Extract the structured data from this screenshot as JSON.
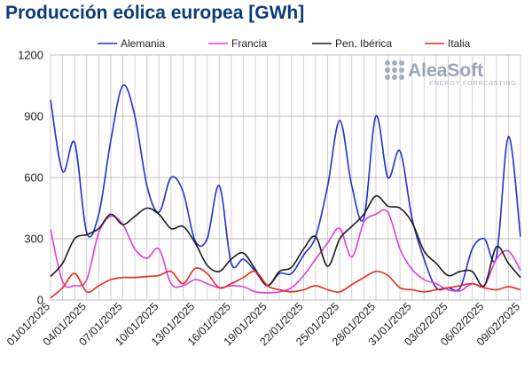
{
  "chart_data": {
    "type": "line",
    "title": "Producción eólica europea [GWh]",
    "xlabel": "",
    "ylabel": "",
    "ylim": [
      0,
      1200
    ],
    "yticks": [
      0,
      300,
      600,
      900,
      1200
    ],
    "x_tick_labels": [
      "01/01/2025",
      "04/01/2025",
      "07/01/2025",
      "10/01/2025",
      "13/01/2025",
      "16/01/2025",
      "19/01/2025",
      "22/01/2025",
      "25/01/2025",
      "28/01/2025",
      "31/01/2025",
      "03/02/2025",
      "06/02/2025",
      "09/02/2025"
    ],
    "x": [
      "01/01/2025",
      "02/01/2025",
      "03/01/2025",
      "04/01/2025",
      "05/01/2025",
      "06/01/2025",
      "07/01/2025",
      "08/01/2025",
      "09/01/2025",
      "10/01/2025",
      "11/01/2025",
      "12/01/2025",
      "13/01/2025",
      "14/01/2025",
      "15/01/2025",
      "16/01/2025",
      "17/01/2025",
      "18/01/2025",
      "19/01/2025",
      "20/01/2025",
      "21/01/2025",
      "22/01/2025",
      "23/01/2025",
      "24/01/2025",
      "25/01/2025",
      "26/01/2025",
      "27/01/2025",
      "28/01/2025",
      "29/01/2025",
      "30/01/2025",
      "31/01/2025",
      "01/02/2025",
      "02/02/2025",
      "03/02/2025",
      "04/02/2025",
      "05/02/2025",
      "06/02/2025",
      "07/02/2025",
      "08/02/2025",
      "09/02/2025"
    ],
    "grid": true,
    "legend_position": "top",
    "series": [
      {
        "name": "Alemania",
        "color": "#1f2fd1",
        "values": [
          980,
          630,
          770,
          330,
          420,
          780,
          1050,
          900,
          560,
          430,
          600,
          530,
          290,
          300,
          560,
          180,
          200,
          140,
          70,
          130,
          130,
          220,
          310,
          560,
          880,
          560,
          400,
          900,
          600,
          730,
          400,
          200,
          60,
          60,
          60,
          250,
          300,
          210,
          800,
          310
        ]
      },
      {
        "name": "Francia",
        "color": "#e23be3",
        "values": [
          345,
          90,
          70,
          100,
          330,
          410,
          370,
          250,
          205,
          250,
          80,
          70,
          100,
          80,
          60,
          70,
          65,
          40,
          35,
          40,
          60,
          120,
          200,
          280,
          350,
          210,
          380,
          420,
          430,
          250,
          150,
          100,
          80,
          50,
          45,
          80,
          70,
          200,
          240,
          145
        ]
      },
      {
        "name": "Pen. Ibérica",
        "color": "#1b1b1b",
        "values": [
          115,
          180,
          300,
          320,
          350,
          420,
          370,
          410,
          450,
          420,
          350,
          360,
          280,
          170,
          140,
          200,
          230,
          150,
          70,
          140,
          160,
          250,
          310,
          165,
          300,
          360,
          420,
          510,
          460,
          450,
          380,
          240,
          180,
          120,
          140,
          140,
          70,
          260,
          180,
          110
        ]
      },
      {
        "name": "Italia",
        "color": "#e8291b",
        "values": [
          10,
          60,
          130,
          40,
          70,
          100,
          110,
          110,
          115,
          120,
          140,
          80,
          155,
          130,
          60,
          80,
          110,
          140,
          70,
          50,
          40,
          50,
          70,
          50,
          40,
          75,
          110,
          140,
          120,
          60,
          50,
          40,
          50,
          60,
          70,
          80,
          60,
          50,
          65,
          50
        ]
      }
    ]
  },
  "logo": {
    "name": "AleaSoft",
    "tagline": "ENERGY FORECASTING"
  }
}
